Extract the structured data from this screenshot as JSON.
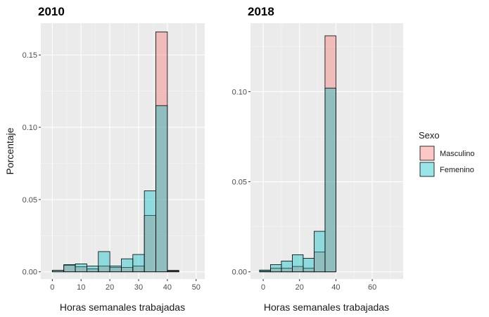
{
  "chart_data": [
    {
      "type": "histogram",
      "title": "2010",
      "xlabel": "Horas semanales trabajadas",
      "ylabel": "Porcentaje",
      "xlim": [
        -4,
        53
      ],
      "ylim": [
        -0.005,
        0.172
      ],
      "xticks": [
        0,
        10,
        20,
        30,
        40,
        50
      ],
      "yticks": [
        0.0,
        0.05,
        0.1,
        0.15
      ],
      "ytick_labels": [
        "0.00",
        "0.05",
        "0.10",
        "0.15"
      ],
      "bin_width": 4,
      "bins": [
        0,
        4,
        8,
        12,
        16,
        20,
        24,
        28,
        32,
        36,
        40,
        44
      ],
      "series": [
        {
          "name": "Masculino",
          "values": [
            0.001,
            0.0045,
            0.0035,
            0.002,
            0.004,
            0.003,
            0.003,
            0.004,
            0.039,
            0.166,
            0.001,
            0.0
          ]
        },
        {
          "name": "Femenino",
          "values": [
            0.001,
            0.005,
            0.0055,
            0.004,
            0.014,
            0.004,
            0.009,
            0.012,
            0.056,
            0.115,
            0.0005,
            0.0
          ]
        }
      ]
    },
    {
      "type": "histogram",
      "title": "2018",
      "xlabel": "Horas semanales trabajadas",
      "ylabel": "",
      "xlim": [
        -7,
        77
      ],
      "ylim": [
        -0.004,
        0.138
      ],
      "xticks": [
        0,
        20,
        40,
        60
      ],
      "yticks": [
        0.0,
        0.05,
        0.1
      ],
      "ytick_labels": [
        "0.00",
        "0.05",
        "0.10"
      ],
      "bin_width": 6,
      "bins": [
        -2,
        4,
        10,
        16,
        22,
        28,
        34,
        40,
        46,
        52,
        58,
        64,
        70
      ],
      "series": [
        {
          "name": "Masculino",
          "values": [
            0.0005,
            0.002,
            0.002,
            0.003,
            0.002,
            0.011,
            0.131,
            0.0,
            0.0,
            0.0,
            0.0,
            0.0,
            0.0
          ]
        },
        {
          "name": "Femenino",
          "values": [
            0.001,
            0.004,
            0.006,
            0.0095,
            0.0075,
            0.0225,
            0.102,
            0.0,
            0.0,
            0.0,
            0.0,
            0.0,
            0.0
          ]
        }
      ]
    }
  ],
  "legend": {
    "title": "Sexo",
    "items": [
      {
        "label": "Masculino",
        "color": "#F8766D"
      },
      {
        "label": "Femenino",
        "color": "#00BFC4"
      }
    ]
  },
  "colors": {
    "panel_bg": "#EBEBEB",
    "grid_major": "#FFFFFF",
    "grid_minor": "#F5F5F5",
    "Masculino": "#F8766D",
    "Femenino": "#00BFC4"
  }
}
